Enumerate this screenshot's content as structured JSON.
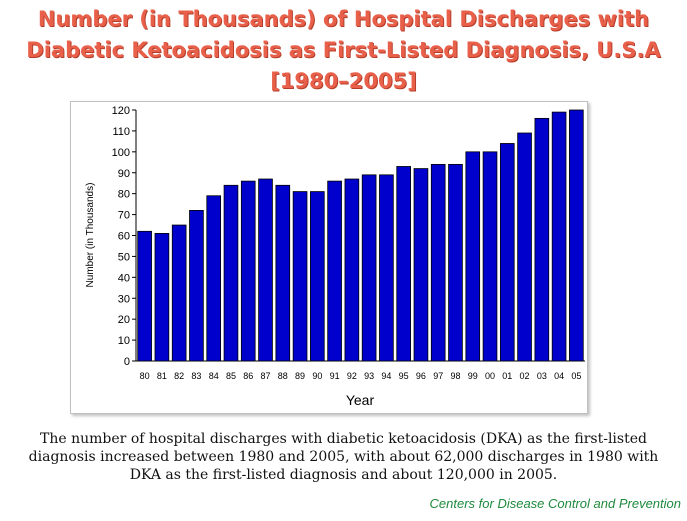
{
  "title": {
    "line1": "Number (in Thousands) of Hospital Discharges with",
    "line2": "Diabetic Ketoacidosis as  First-Listed Diagnosis, U.S.A",
    "line3": "[1980–2005]"
  },
  "caption": "The number of hospital discharges with diabetic ketoacidosis (DKA) as the first-listed diagnosis increased between 1980 and 2005, with about 62,000 discharges in 1980 with DKA as the first-listed diagnosis and about 120,000 in 2005.",
  "source": "Centers for Disease Control and Prevention",
  "chart_data": {
    "type": "bar",
    "xlabel": "Year",
    "ylabel": "Number (in Thousands)",
    "ylim": [
      0,
      120
    ],
    "yticks": [
      0,
      10,
      20,
      30,
      40,
      50,
      60,
      70,
      80,
      90,
      100,
      110,
      120
    ],
    "grid": false,
    "bar_color": "#0000cc",
    "categories": [
      "80",
      "81",
      "82",
      "83",
      "84",
      "85",
      "86",
      "87",
      "88",
      "89",
      "90",
      "91",
      "92",
      "93",
      "94",
      "95",
      "96",
      "97",
      "98",
      "99",
      "00",
      "01",
      "02",
      "03",
      "04",
      "05"
    ],
    "values": [
      62,
      61,
      65,
      72,
      79,
      84,
      86,
      87,
      84,
      81,
      81,
      86,
      87,
      89,
      89,
      93,
      92,
      94,
      94,
      100,
      100,
      104,
      109,
      116,
      119,
      120
    ]
  }
}
